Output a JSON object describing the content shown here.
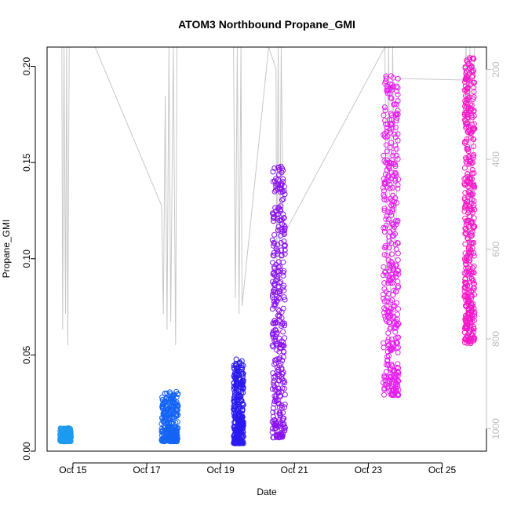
{
  "chart_data": {
    "type": "scatter",
    "title": "ATOM3 Northbound Propane_GMI",
    "xlabel": "Date",
    "ylabel": "Propane_GMI",
    "ylim": [
      0,
      0.21
    ],
    "y_ticks": [
      0.0,
      0.05,
      0.1,
      0.15,
      0.2
    ],
    "y_tick_labels": [
      "0.00",
      "0.05",
      "0.10",
      "0.15",
      "0.20"
    ],
    "xlim": [
      14.3,
      26.2
    ],
    "x_ticks": [
      15,
      17,
      19,
      21,
      23,
      25
    ],
    "x_tick_labels": [
      "Oct 15",
      "Oct 17",
      "Oct 19",
      "Oct 21",
      "Oct 23",
      "Oct 25"
    ],
    "right_axis": {
      "description": "altitude trace (grey line), inverted axis",
      "ylim_top": 150,
      "ylim_bottom": 1050,
      "ticks": [
        200,
        400,
        600,
        800,
        1000
      ],
      "tick_labels": [
        "200",
        "400",
        "600",
        "800",
        "1000"
      ],
      "color": "#bdbdbd"
    },
    "grid": false,
    "series": [
      {
        "x_range": [
          14.65,
          14.95
        ],
        "y_range": [
          0.005,
          0.012
        ],
        "color": "#1e9bf0"
      },
      {
        "x_range": [
          17.4,
          17.85
        ],
        "y_range": [
          0.005,
          0.031
        ],
        "color": "#1464f5"
      },
      {
        "x_range": [
          19.35,
          19.62
        ],
        "y_range": [
          0.004,
          0.048
        ],
        "color": "#2a1af0"
      },
      {
        "x_range": [
          20.4,
          20.75
        ],
        "y_range": [
          0.007,
          0.148
        ],
        "color": "#8a14f0"
      },
      {
        "x_range": [
          23.4,
          23.82
        ],
        "y_range": [
          0.029,
          0.196
        ],
        "color": "#e61ef0"
      },
      {
        "x_range": [
          25.6,
          25.88
        ],
        "y_range": [
          0.056,
          0.205
        ],
        "color": "#f519c8"
      }
    ]
  }
}
